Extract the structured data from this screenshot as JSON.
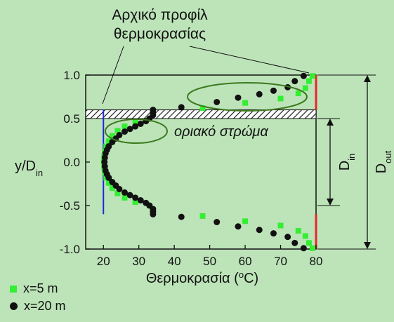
{
  "annotation_title": [
    "Αρχικό προφίλ",
    "θερμοκρασίας"
  ],
  "boundary_layer_label": "οριακό στρώμα",
  "d_in": {
    "base": "D",
    "sub": "in"
  },
  "d_out": {
    "base": "D",
    "sub": "out"
  },
  "colors": {
    "background": "#bde4b9",
    "green": "#33ee33",
    "black": "#111111",
    "blue": "#1a2bd6",
    "red": "#e8262a",
    "ellipse": "#3d7a1e"
  },
  "chart_data": {
    "type": "scatter",
    "xlabel": {
      "text": "Θερμοκρασία (",
      "sup": "o",
      "after": "C)"
    },
    "ylabel": {
      "base": "y/D",
      "sub": "in"
    },
    "xlim": [
      15,
      80
    ],
    "ylim": [
      -1.0,
      1.0
    ],
    "xticks": [
      "20",
      "30",
      "40",
      "50",
      "60",
      "70",
      "80"
    ],
    "yticks": [
      "1.0",
      "0.5",
      "0.0",
      "-0.5",
      "-1.0"
    ],
    "initial_profile": {
      "left_x": 20,
      "right_x": 80,
      "y_range": [
        -0.6,
        0.6
      ]
    },
    "wall_band": {
      "y": [
        0.5,
        0.6
      ]
    },
    "series": [
      {
        "name": "x=5 m",
        "marker": "square",
        "color": "#33ee33",
        "points": [
          [
            79,
            0.99
          ],
          [
            78,
            0.93
          ],
          [
            77,
            0.85
          ],
          [
            75,
            0.79
          ],
          [
            70,
            0.73
          ],
          [
            60,
            0.68
          ],
          [
            48,
            0.62
          ],
          [
            34,
            0.55
          ],
          [
            33,
            0.5
          ],
          [
            29,
            0.46
          ],
          [
            26,
            0.41
          ],
          [
            24,
            0.36
          ],
          [
            22.5,
            0.3
          ],
          [
            21.5,
            0.24
          ],
          [
            20.8,
            0.18
          ],
          [
            20.4,
            0.12
          ],
          [
            20.2,
            0.06
          ],
          [
            20.1,
            0
          ],
          [
            20.2,
            -0.06
          ],
          [
            20.4,
            -0.12
          ],
          [
            20.8,
            -0.18
          ],
          [
            21.5,
            -0.24
          ],
          [
            22.5,
            -0.3
          ],
          [
            24,
            -0.36
          ],
          [
            26,
            -0.41
          ],
          [
            29,
            -0.46
          ],
          [
            33,
            -0.5
          ],
          [
            34,
            -0.55
          ],
          [
            48,
            -0.62
          ],
          [
            60,
            -0.68
          ],
          [
            70,
            -0.73
          ],
          [
            75,
            -0.79
          ],
          [
            77,
            -0.85
          ],
          [
            78,
            -0.93
          ],
          [
            79,
            -0.99
          ]
        ]
      },
      {
        "name": "x=20 m",
        "marker": "circle",
        "color": "#111111",
        "points": [
          [
            76.5,
            0.99
          ],
          [
            74,
            0.93
          ],
          [
            72,
            0.86
          ],
          [
            68,
            0.82
          ],
          [
            64,
            0.78
          ],
          [
            58,
            0.74
          ],
          [
            52,
            0.69
          ],
          [
            42,
            0.63
          ],
          [
            34,
            0.6
          ],
          [
            34,
            0.57
          ],
          [
            34,
            0.54
          ],
          [
            33,
            0.5
          ],
          [
            32,
            0.47
          ],
          [
            30.5,
            0.44
          ],
          [
            29,
            0.41
          ],
          [
            27.5,
            0.38
          ],
          [
            26,
            0.35
          ],
          [
            24.5,
            0.31
          ],
          [
            23.5,
            0.27
          ],
          [
            22.5,
            0.23
          ],
          [
            21.5,
            0.18
          ],
          [
            21,
            0.14
          ],
          [
            20.6,
            0.1
          ],
          [
            20.4,
            0.05
          ],
          [
            20.3,
            0
          ],
          [
            20.4,
            -0.05
          ],
          [
            20.6,
            -0.1
          ],
          [
            21,
            -0.14
          ],
          [
            21.5,
            -0.18
          ],
          [
            22.5,
            -0.23
          ],
          [
            23.5,
            -0.27
          ],
          [
            24.5,
            -0.31
          ],
          [
            26,
            -0.35
          ],
          [
            27.5,
            -0.38
          ],
          [
            29,
            -0.41
          ],
          [
            30.5,
            -0.44
          ],
          [
            32,
            -0.47
          ],
          [
            33,
            -0.5
          ],
          [
            34,
            -0.54
          ],
          [
            34,
            -0.57
          ],
          [
            34,
            -0.6
          ],
          [
            42,
            -0.63
          ],
          [
            52,
            -0.69
          ],
          [
            58,
            -0.74
          ],
          [
            64,
            -0.78
          ],
          [
            68,
            -0.82
          ],
          [
            72,
            -0.86
          ],
          [
            74,
            -0.93
          ],
          [
            76.5,
            -0.99
          ]
        ]
      }
    ]
  }
}
